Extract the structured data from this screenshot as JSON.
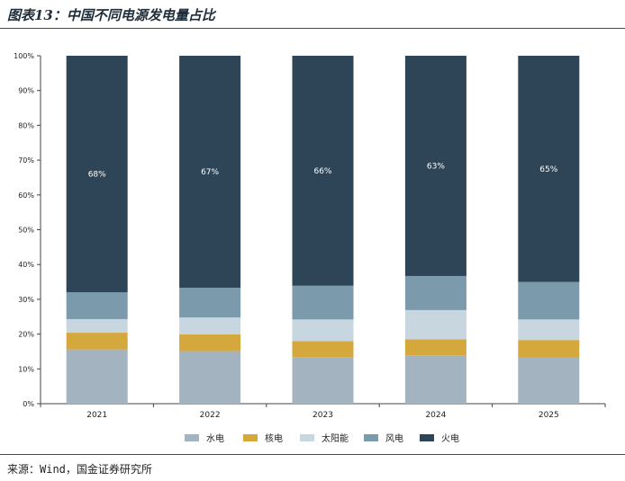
{
  "figure": {
    "title": "图表13：中国不同电源发电量占比",
    "source": "来源：Wind，国金证券研究所"
  },
  "chart_data": {
    "type": "bar",
    "stacked": true,
    "percent": true,
    "categories": [
      "2021",
      "2022",
      "2023",
      "2024",
      "2025"
    ],
    "ylim": [
      0,
      100
    ],
    "yticks": [
      "0%",
      "10%",
      "20%",
      "30%",
      "40%",
      "50%",
      "60%",
      "70%",
      "80%",
      "90%",
      "100%"
    ],
    "legend_position": "bottom",
    "grid": false,
    "series": [
      {
        "name": "水电",
        "color": "#a3b4c0",
        "values": [
          15.6,
          15.1,
          13.4,
          13.9,
          13.2
        ]
      },
      {
        "name": "核电",
        "color": "#d4a83c",
        "values": [
          4.8,
          4.8,
          4.6,
          4.6,
          5.1
        ]
      },
      {
        "name": "太阳能",
        "color": "#c7d6df",
        "values": [
          3.9,
          4.9,
          6.2,
          8.4,
          5.9
        ]
      },
      {
        "name": "风电",
        "color": "#7b9aab",
        "values": [
          7.7,
          8.5,
          9.7,
          9.8,
          10.8
        ]
      },
      {
        "name": "火电",
        "color": "#2e4557",
        "values": [
          68,
          66.7,
          66.1,
          63.3,
          65.0
        ]
      }
    ],
    "data_labels": {
      "series": "火电",
      "labels": [
        "68%",
        "67%",
        "66%",
        "63%",
        "65%"
      ]
    }
  }
}
